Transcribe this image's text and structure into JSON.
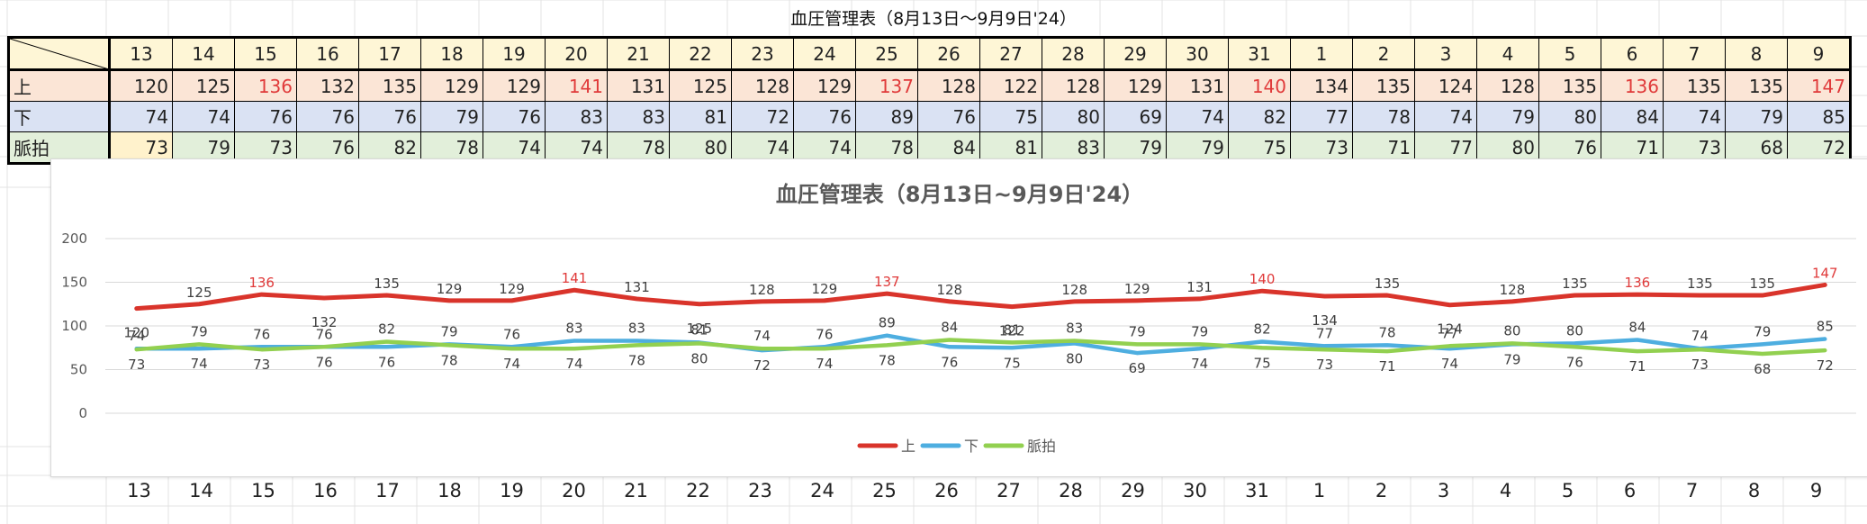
{
  "sheet": {
    "title": "血圧管理表（8月13日〜9月9日'24）",
    "row_labels": {
      "upper": "上",
      "lower": "下",
      "pulse": "脈拍"
    },
    "days": [
      "13",
      "14",
      "15",
      "16",
      "17",
      "18",
      "19",
      "20",
      "21",
      "22",
      "23",
      "24",
      "25",
      "26",
      "27",
      "28",
      "29",
      "30",
      "31",
      "1",
      "2",
      "3",
      "4",
      "5",
      "6",
      "7",
      "8",
      "9"
    ],
    "upper": [
      120,
      125,
      136,
      132,
      135,
      129,
      129,
      141,
      131,
      125,
      128,
      129,
      137,
      128,
      122,
      128,
      129,
      131,
      140,
      134,
      135,
      124,
      128,
      135,
      136,
      135,
      135,
      147
    ],
    "lower": [
      74,
      74,
      76,
      76,
      76,
      79,
      76,
      83,
      83,
      81,
      72,
      76,
      89,
      76,
      75,
      80,
      69,
      74,
      82,
      77,
      78,
      74,
      79,
      80,
      84,
      74,
      79,
      85
    ],
    "pulse": [
      73,
      79,
      73,
      76,
      82,
      78,
      74,
      74,
      78,
      80,
      74,
      74,
      78,
      84,
      81,
      83,
      79,
      79,
      75,
      73,
      71,
      77,
      80,
      76,
      71,
      73,
      68,
      72
    ],
    "highlight_threshold": 136,
    "highlight_color": "#e03a3a"
  },
  "chart_data": {
    "type": "line",
    "title": "血圧管理表（8月13日~9月9日'24）",
    "categories": [
      "13",
      "14",
      "15",
      "16",
      "17",
      "18",
      "19",
      "20",
      "21",
      "22",
      "23",
      "24",
      "25",
      "26",
      "27",
      "28",
      "29",
      "30",
      "31",
      "1",
      "2",
      "3",
      "4",
      "5",
      "6",
      "7",
      "8",
      "9"
    ],
    "ylim": [
      0,
      200
    ],
    "yticks": [
      0,
      50,
      100,
      150,
      200
    ],
    "grid": true,
    "legend_position": "bottom",
    "series": [
      {
        "name": "上",
        "color": "#d9342b",
        "values": [
          120,
          125,
          136,
          132,
          135,
          129,
          129,
          141,
          131,
          125,
          128,
          129,
          137,
          128,
          122,
          128,
          129,
          131,
          140,
          134,
          135,
          124,
          128,
          135,
          136,
          135,
          135,
          147
        ]
      },
      {
        "name": "下",
        "color": "#4eaee0",
        "values": [
          74,
          74,
          76,
          76,
          76,
          79,
          76,
          83,
          83,
          81,
          72,
          76,
          89,
          76,
          75,
          80,
          69,
          74,
          82,
          77,
          78,
          74,
          79,
          80,
          84,
          74,
          79,
          85
        ]
      },
      {
        "name": "脈拍",
        "color": "#92d050",
        "values": [
          73,
          79,
          73,
          76,
          82,
          78,
          74,
          74,
          78,
          80,
          74,
          74,
          78,
          84,
          81,
          83,
          79,
          79,
          75,
          73,
          71,
          77,
          80,
          76,
          71,
          73,
          68,
          72
        ]
      }
    ]
  },
  "bottom_row": [
    "13",
    "14",
    "15",
    "16",
    "17",
    "18",
    "19",
    "20",
    "21",
    "22",
    "23",
    "24",
    "25",
    "26",
    "27",
    "28",
    "29",
    "30",
    "31",
    "1",
    "2",
    "3",
    "4",
    "5",
    "6",
    "7",
    "8",
    "9"
  ]
}
